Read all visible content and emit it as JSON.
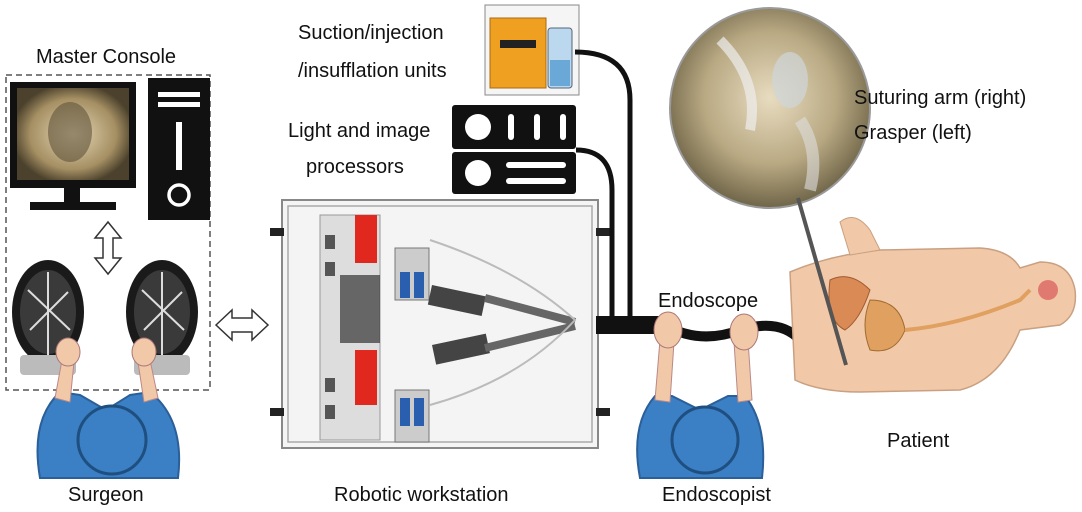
{
  "labels": {
    "master_console": "Master Console",
    "suction_line1": "Suction/injection",
    "suction_line2": "/insufflation units",
    "light_line1": "Light and image",
    "light_line2": "processors",
    "suturing_arm": "Suturing arm (right)",
    "grasper": "Grasper (left)",
    "endoscope": "Endoscope",
    "patient": "Patient",
    "surgeon": "Surgeon",
    "robotic_workstation": "Robotic workstation",
    "endoscopist": "Endoscopist"
  },
  "colors": {
    "person_blue": "#3b7fc4",
    "skin": "#f2c9a8",
    "red_module": "#e0281e",
    "dark": "#111111",
    "orange_unit": "#f0a020"
  }
}
